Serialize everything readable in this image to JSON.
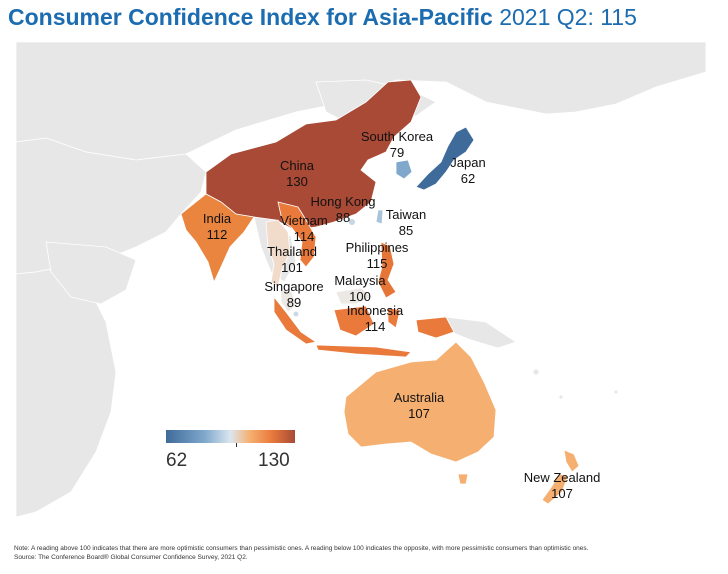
{
  "title": {
    "main": "Consumer Confidence Index for Asia-Pacific",
    "sub": "2021 Q2: 115"
  },
  "legend": {
    "min": "62",
    "max": "130"
  },
  "regions": [
    {
      "name": "China",
      "value": "130",
      "color": "#a84a36"
    },
    {
      "name": "South Korea",
      "value": "79",
      "color": "#7fa8cc"
    },
    {
      "name": "Japan",
      "value": "62",
      "color": "#3f6b9a"
    },
    {
      "name": "India",
      "value": "112",
      "color": "#ea8540"
    },
    {
      "name": "Hong Kong",
      "value": "88",
      "color": "#c5d6e4"
    },
    {
      "name": "Vietnam",
      "value": "114",
      "color": "#e97a3c"
    },
    {
      "name": "Taiwan",
      "value": "85",
      "color": "#a8c3da"
    },
    {
      "name": "Thailand",
      "value": "101",
      "color": "#f1dccb"
    },
    {
      "name": "Philippines",
      "value": "115",
      "color": "#e67638"
    },
    {
      "name": "Malaysia",
      "value": "100",
      "color": "#ece8e4"
    },
    {
      "name": "Singapore",
      "value": "89",
      "color": "#c9d9e6"
    },
    {
      "name": "Indonesia",
      "value": "114",
      "color": "#e97a3c"
    },
    {
      "name": "Australia",
      "value": "107",
      "color": "#f5b071"
    },
    {
      "name": "New Zealand",
      "value": "107",
      "color": "#f5b071"
    }
  ],
  "note": {
    "line1": "Note: A reading above 100 indicates that there are more optimistic consumers than pessimistic ones. A reading below 100 indicates the opposite, with more pessimistic consumers than optimistic ones.",
    "line2": "Source: The Conference Board® Global Consumer Confidence Survey, 2021 Q2."
  }
}
